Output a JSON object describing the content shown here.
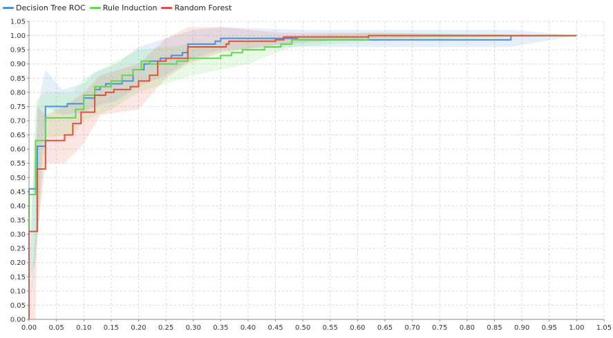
{
  "colors": {
    "decision_tree": "#4a8fd9",
    "rule_induction": "#5fd94a",
    "random_forest": "#e0503a",
    "grid": "#d8d8d8",
    "axis": "#888888",
    "background": "#ffffff"
  },
  "chart_data": {
    "type": "line",
    "title": "",
    "xlabel": "",
    "ylabel": "",
    "xlim": [
      0,
      1.05
    ],
    "ylim": [
      0,
      1.05
    ],
    "grid": true,
    "legend_position": "top-left",
    "x_ticks": [
      "0.00",
      "0.05",
      "0.10",
      "0.15",
      "0.20",
      "0.25",
      "0.30",
      "0.35",
      "0.40",
      "0.45",
      "0.50",
      "0.55",
      "0.60",
      "0.65",
      "0.70",
      "0.75",
      "0.80",
      "0.85",
      "0.90",
      "0.95",
      "1.00",
      "1.05"
    ],
    "y_ticks": [
      "0.00",
      "0.05",
      "0.10",
      "0.15",
      "0.20",
      "0.25",
      "0.30",
      "0.35",
      "0.40",
      "0.45",
      "0.50",
      "0.55",
      "0.60",
      "0.65",
      "0.70",
      "0.75",
      "0.80",
      "0.85",
      "0.90",
      "0.95",
      "1.00",
      "1.05"
    ],
    "series": [
      {
        "name": "Decision Tree ROC",
        "key": "decision_tree",
        "points": [
          [
            0,
            0
          ],
          [
            0,
            0.46
          ],
          [
            0.015,
            0.46
          ],
          [
            0.015,
            0.61
          ],
          [
            0.03,
            0.61
          ],
          [
            0.03,
            0.75
          ],
          [
            0.07,
            0.75
          ],
          [
            0.07,
            0.76
          ],
          [
            0.1,
            0.76
          ],
          [
            0.1,
            0.78
          ],
          [
            0.12,
            0.78
          ],
          [
            0.12,
            0.81
          ],
          [
            0.13,
            0.81
          ],
          [
            0.13,
            0.82
          ],
          [
            0.14,
            0.82
          ],
          [
            0.14,
            0.83
          ],
          [
            0.17,
            0.83
          ],
          [
            0.17,
            0.84
          ],
          [
            0.19,
            0.84
          ],
          [
            0.19,
            0.88
          ],
          [
            0.21,
            0.88
          ],
          [
            0.21,
            0.9
          ],
          [
            0.22,
            0.9
          ],
          [
            0.22,
            0.91
          ],
          [
            0.24,
            0.91
          ],
          [
            0.24,
            0.92
          ],
          [
            0.26,
            0.92
          ],
          [
            0.26,
            0.93
          ],
          [
            0.28,
            0.93
          ],
          [
            0.28,
            0.94
          ],
          [
            0.29,
            0.94
          ],
          [
            0.29,
            0.97
          ],
          [
            0.34,
            0.97
          ],
          [
            0.34,
            0.98
          ],
          [
            0.35,
            0.98
          ],
          [
            0.35,
            0.99
          ],
          [
            0.49,
            0.99
          ],
          [
            0.49,
            0.985
          ],
          [
            0.88,
            0.985
          ],
          [
            0.88,
            1.0
          ],
          [
            1.0,
            1.0
          ]
        ],
        "band": [
          [
            0,
            0,
            0.2
          ],
          [
            0.015,
            0.3,
            0.75
          ],
          [
            0.03,
            0.75,
            0.88
          ],
          [
            0.06,
            0.72,
            0.81
          ],
          [
            0.1,
            0.73,
            0.83
          ],
          [
            0.12,
            0.75,
            0.87
          ],
          [
            0.16,
            0.77,
            0.9
          ],
          [
            0.2,
            0.82,
            0.96
          ],
          [
            0.25,
            0.86,
            0.99
          ],
          [
            0.3,
            0.92,
            1.02
          ],
          [
            0.35,
            0.95,
            1.03
          ],
          [
            0.5,
            0.96,
            1.02
          ],
          [
            0.88,
            0.96,
            1.02
          ],
          [
            1.0,
            1.0,
            1.0
          ]
        ]
      },
      {
        "name": "Rule Induction",
        "key": "rule_induction",
        "points": [
          [
            0,
            0
          ],
          [
            0,
            0.44
          ],
          [
            0.012,
            0.44
          ],
          [
            0.012,
            0.63
          ],
          [
            0.03,
            0.63
          ],
          [
            0.03,
            0.71
          ],
          [
            0.085,
            0.71
          ],
          [
            0.085,
            0.74
          ],
          [
            0.1,
            0.74
          ],
          [
            0.1,
            0.79
          ],
          [
            0.12,
            0.79
          ],
          [
            0.12,
            0.82
          ],
          [
            0.15,
            0.82
          ],
          [
            0.15,
            0.84
          ],
          [
            0.17,
            0.84
          ],
          [
            0.17,
            0.86
          ],
          [
            0.19,
            0.86
          ],
          [
            0.19,
            0.88
          ],
          [
            0.205,
            0.88
          ],
          [
            0.205,
            0.91
          ],
          [
            0.22,
            0.91
          ],
          [
            0.22,
            0.9
          ],
          [
            0.27,
            0.9
          ],
          [
            0.27,
            0.91
          ],
          [
            0.29,
            0.91
          ],
          [
            0.29,
            0.92
          ],
          [
            0.35,
            0.92
          ],
          [
            0.35,
            0.93
          ],
          [
            0.37,
            0.93
          ],
          [
            0.37,
            0.94
          ],
          [
            0.39,
            0.94
          ],
          [
            0.39,
            0.95
          ],
          [
            0.43,
            0.95
          ],
          [
            0.43,
            0.96
          ],
          [
            0.46,
            0.96
          ],
          [
            0.46,
            0.97
          ],
          [
            0.48,
            0.97
          ],
          [
            0.48,
            0.985
          ],
          [
            0.62,
            0.985
          ],
          [
            0.62,
            1.0
          ],
          [
            1.0,
            1.0
          ]
        ],
        "band": [
          [
            0,
            0.14,
            0.14
          ],
          [
            0.012,
            0.2,
            0.77
          ],
          [
            0.03,
            0.64,
            0.8
          ],
          [
            0.08,
            0.65,
            0.8
          ],
          [
            0.1,
            0.7,
            0.85
          ],
          [
            0.15,
            0.74,
            0.9
          ],
          [
            0.2,
            0.8,
            0.95
          ],
          [
            0.25,
            0.83,
            0.96
          ],
          [
            0.3,
            0.86,
            0.97
          ],
          [
            0.4,
            0.9,
            0.98
          ],
          [
            0.48,
            0.96,
            1.0
          ],
          [
            0.62,
            0.98,
            1.01
          ],
          [
            1.0,
            1.0,
            1.0
          ]
        ]
      },
      {
        "name": "Random Forest",
        "key": "random_forest",
        "points": [
          [
            0,
            0
          ],
          [
            0,
            0.31
          ],
          [
            0.015,
            0.31
          ],
          [
            0.015,
            0.53
          ],
          [
            0.03,
            0.53
          ],
          [
            0.03,
            0.63
          ],
          [
            0.065,
            0.63
          ],
          [
            0.065,
            0.65
          ],
          [
            0.08,
            0.65
          ],
          [
            0.08,
            0.69
          ],
          [
            0.095,
            0.69
          ],
          [
            0.095,
            0.73
          ],
          [
            0.12,
            0.73
          ],
          [
            0.12,
            0.79
          ],
          [
            0.14,
            0.79
          ],
          [
            0.14,
            0.8
          ],
          [
            0.155,
            0.8
          ],
          [
            0.155,
            0.81
          ],
          [
            0.185,
            0.81
          ],
          [
            0.185,
            0.82
          ],
          [
            0.2,
            0.82
          ],
          [
            0.2,
            0.84
          ],
          [
            0.22,
            0.84
          ],
          [
            0.22,
            0.86
          ],
          [
            0.235,
            0.86
          ],
          [
            0.235,
            0.91
          ],
          [
            0.25,
            0.91
          ],
          [
            0.25,
            0.92
          ],
          [
            0.29,
            0.92
          ],
          [
            0.29,
            0.96
          ],
          [
            0.36,
            0.96
          ],
          [
            0.36,
            0.97
          ],
          [
            0.365,
            0.97
          ],
          [
            0.365,
            0.98
          ],
          [
            0.45,
            0.98
          ],
          [
            0.45,
            0.985
          ],
          [
            0.465,
            0.985
          ],
          [
            0.465,
            0.995
          ],
          [
            0.62,
            0.995
          ],
          [
            0.62,
            1.0
          ],
          [
            1.0,
            1.0
          ]
        ],
        "band": [
          [
            0,
            0,
            0
          ],
          [
            0.012,
            0,
            0.3
          ],
          [
            0.015,
            0.3,
            0.75
          ],
          [
            0.03,
            0.55,
            0.72
          ],
          [
            0.065,
            0.55,
            0.75
          ],
          [
            0.1,
            0.62,
            0.8
          ],
          [
            0.13,
            0.72,
            0.86
          ],
          [
            0.2,
            0.74,
            0.9
          ],
          [
            0.25,
            0.85,
            0.99
          ],
          [
            0.29,
            0.9,
            1.03
          ],
          [
            0.35,
            0.94,
            1.03
          ],
          [
            0.46,
            0.97,
            1.01
          ],
          [
            0.62,
            0.99,
            1.01
          ],
          [
            1.0,
            1.0,
            1.0
          ]
        ]
      }
    ]
  }
}
